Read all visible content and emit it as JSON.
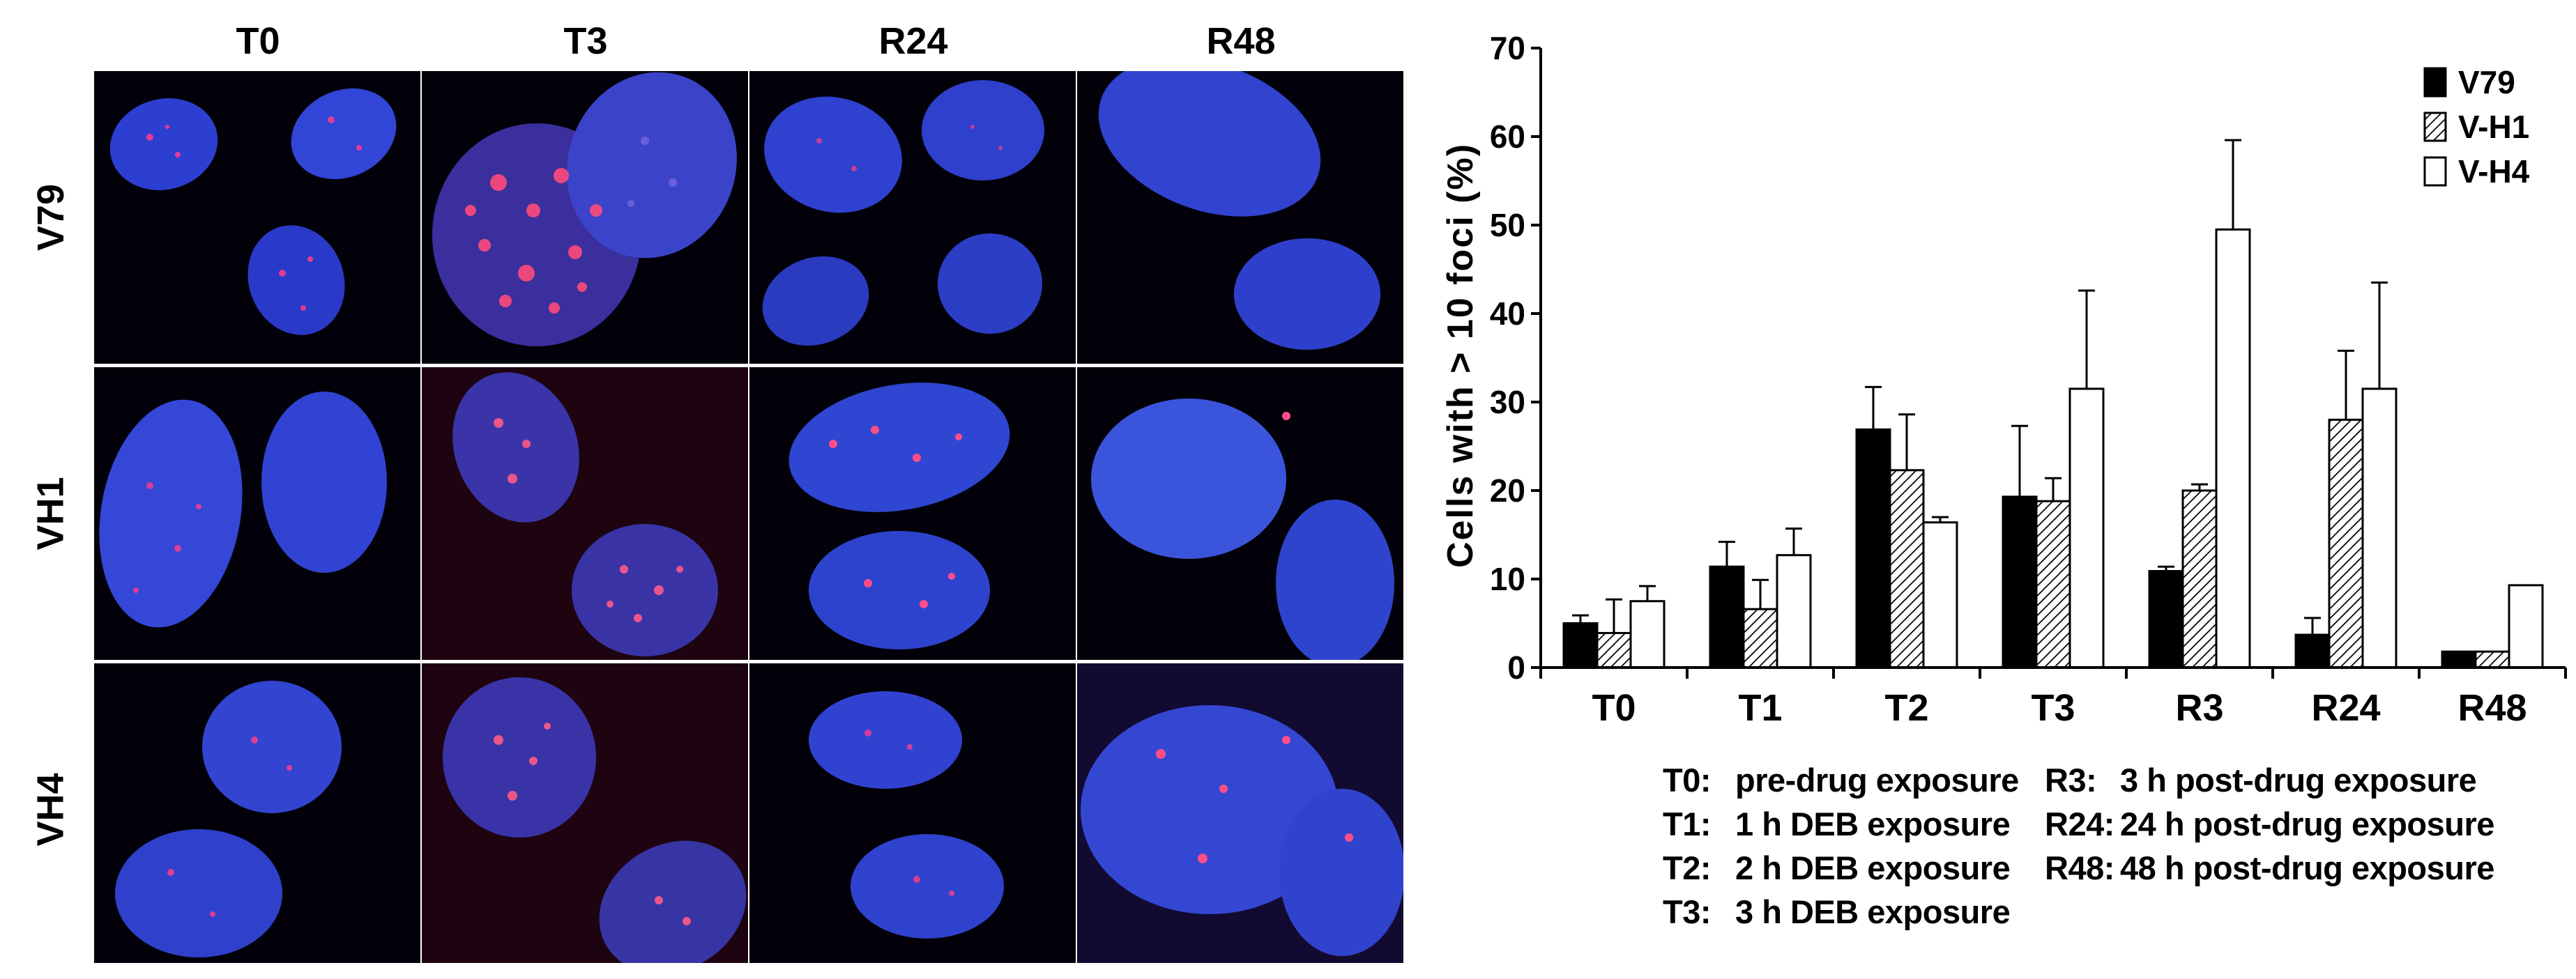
{
  "microscopy": {
    "columns": [
      "T0",
      "T3",
      "R24",
      "R48"
    ],
    "rows": [
      "V79",
      "VH1",
      "VH4"
    ]
  },
  "chart_data": {
    "type": "bar",
    "title": "",
    "xlabel": "",
    "ylabel": "Cells with > 10 foci (%)",
    "ylim": [
      0,
      70
    ],
    "yticks": [
      0,
      10,
      20,
      30,
      40,
      50,
      60,
      70
    ],
    "categories": [
      "T0",
      "T1",
      "T2",
      "T3",
      "R3",
      "R24",
      "R48"
    ],
    "series": [
      {
        "name": "V79",
        "fill": "solid",
        "values": [
          5.0,
          11.4,
          26.9,
          19.3,
          10.9,
          3.7,
          1.8
        ],
        "errors": [
          0.9,
          2.8,
          4.8,
          8.0,
          0.5,
          1.9,
          0
        ]
      },
      {
        "name": "V-H1",
        "fill": "hatched",
        "values": [
          3.9,
          6.6,
          22.3,
          18.8,
          20.0,
          28.0,
          1.8
        ],
        "errors": [
          3.8,
          3.3,
          6.3,
          2.6,
          0.7,
          7.8,
          0
        ]
      },
      {
        "name": "V-H4",
        "fill": "open",
        "values": [
          7.5,
          12.7,
          16.4,
          31.5,
          49.5,
          31.5,
          9.3
        ],
        "errors": [
          1.7,
          3.0,
          0.6,
          11.1,
          10.1,
          12.0,
          0
        ]
      }
    ],
    "legend_position": "top-right",
    "grid": false
  },
  "notes": {
    "left": [
      {
        "key": "T0:",
        "text": "pre-drug exposure"
      },
      {
        "key": "T1:",
        "text": "1 h DEB exposure"
      },
      {
        "key": "T2:",
        "text": "2 h DEB exposure"
      },
      {
        "key": "T3:",
        "text": "3 h DEB exposure"
      }
    ],
    "right": [
      {
        "key": "R3:",
        "text": "3 h post-drug exposure"
      },
      {
        "key": "R24:",
        "text": "24 h post-drug exposure"
      },
      {
        "key": "R48:",
        "text": "48 h post-drug exposure"
      }
    ]
  }
}
